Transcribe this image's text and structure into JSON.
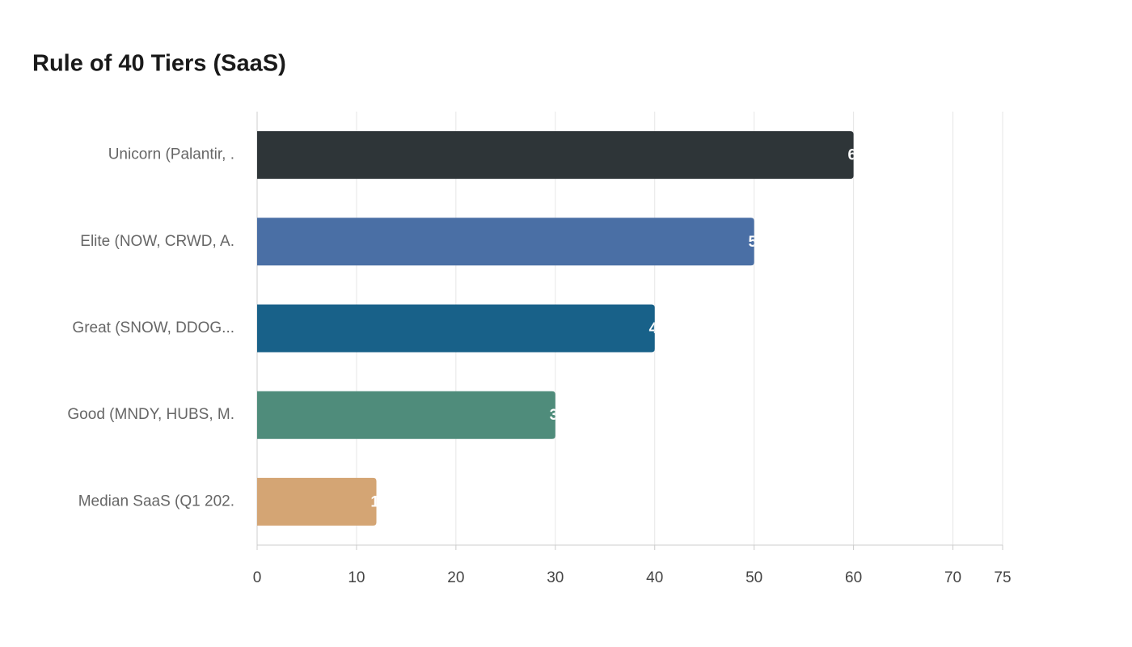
{
  "chart_data": {
    "type": "hbar",
    "title": "Rule of 40 Tiers (SaaS)",
    "categories": [
      "Unicorn (Palantir, .",
      "Elite (NOW, CRWD, A.",
      "Great (SNOW, DDOG...",
      "Good (MNDY, HUBS, M.",
      "Median SaaS (Q1 202."
    ],
    "values": [
      60,
      50,
      40,
      30,
      12
    ],
    "colors": [
      "#2e3538",
      "#4a6fa5",
      "#186189",
      "#4f8c7b",
      "#d4a574"
    ],
    "xlim": [
      0,
      75
    ],
    "xticks": [
      0,
      10,
      20,
      30,
      40,
      50,
      60,
      70,
      75
    ],
    "grid": true
  }
}
